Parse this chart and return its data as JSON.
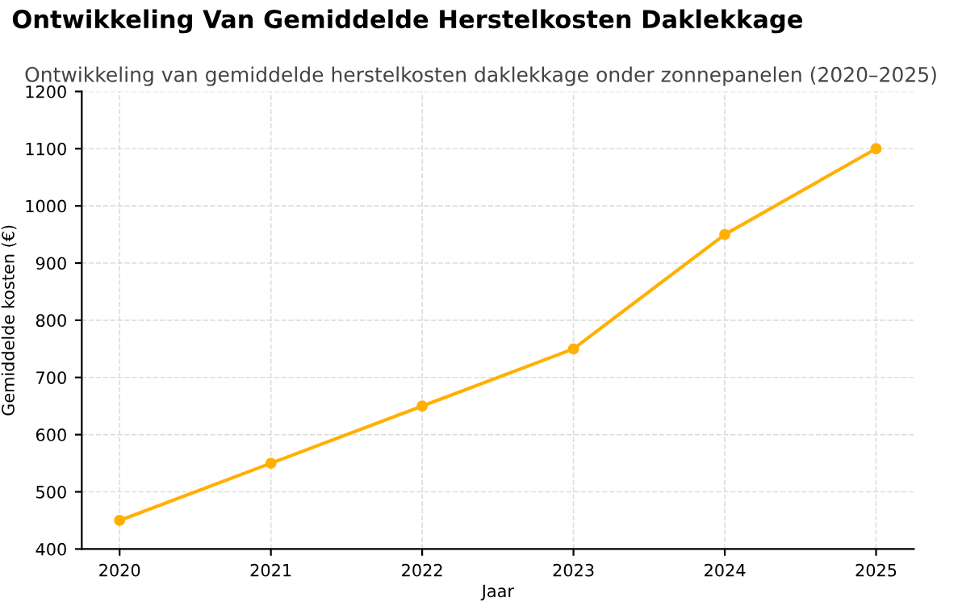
{
  "chart_data": {
    "type": "line",
    "title": "Ontwikkeling Van Gemiddelde Herstelkosten Daklekkage",
    "subtitle": "Ontwikkeling van gemiddelde herstelkosten daklekkage onder zonnepanelen (2020–2025)",
    "xlabel": "Jaar",
    "ylabel": "Gemiddelde kosten (€)",
    "x": [
      2020,
      2021,
      2022,
      2023,
      2024,
      2025
    ],
    "series": [
      {
        "color": "#ffb000",
        "values": [
          450,
          550,
          650,
          750,
          950,
          1100
        ]
      }
    ],
    "xlim": [
      2019.75,
      2025.25
    ],
    "xticks": [
      2020,
      2021,
      2022,
      2023,
      2024,
      2025
    ],
    "ylim": [
      400,
      1200
    ],
    "yticks": [
      400,
      500,
      600,
      700,
      800,
      900,
      1000,
      1100,
      1200
    ],
    "grid": true,
    "marker": "circle",
    "line_style": "solid"
  }
}
